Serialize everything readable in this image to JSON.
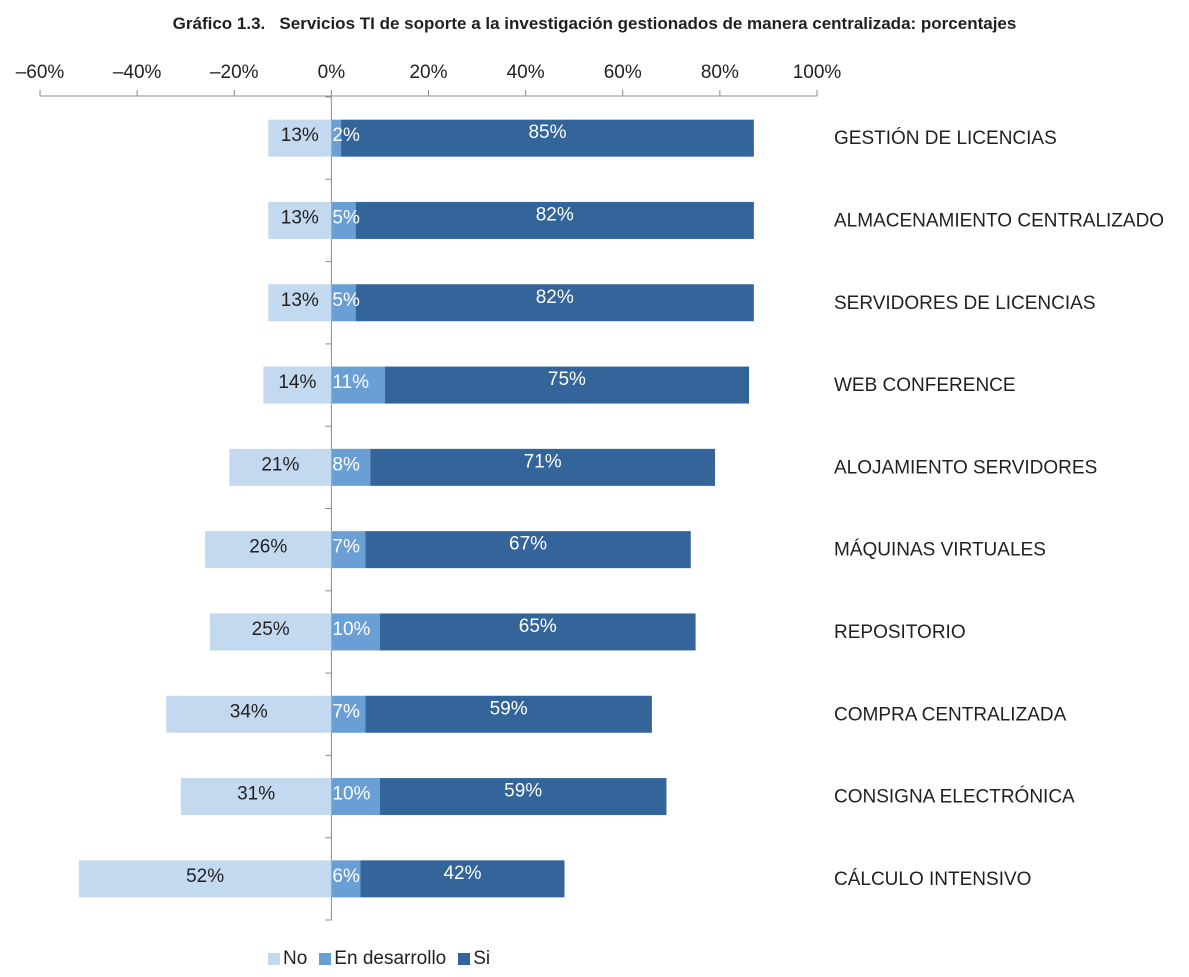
{
  "chart_data": {
    "type": "bar",
    "orientation": "horizontal",
    "stacked": true,
    "diverging": true,
    "title": "Gráfico 1.3.   Servicios TI de soporte a la investigación gestionados de manera centralizada: porcentajes",
    "xlim": [
      -60,
      100
    ],
    "x_ticks": [
      -60,
      -40,
      -20,
      0,
      20,
      40,
      60,
      80,
      100
    ],
    "x_tick_labels": [
      "–60%",
      "–40%",
      "–20%",
      "0%",
      "20%",
      "40%",
      "60%",
      "80%",
      "100%"
    ],
    "x_axis_position": "top",
    "category_label_position": "right",
    "grid": false,
    "categories": [
      "GESTIÓN DE LICENCIAS",
      "ALMACENAMIENTO CENTRALIZADO",
      "SERVIDORES DE LICENCIAS",
      "WEB CONFERENCE",
      "ALOJAMIENTO SERVIDORES",
      "MÁQUINAS VIRTUALES",
      "REPOSITORIO",
      "COMPRA CENTRALIZADA",
      "CONSIGNA ELECTRÓNICA",
      "CÁLCULO INTENSIVO"
    ],
    "series": [
      {
        "name": "No",
        "color": "#c3d9ef",
        "direction": "negative",
        "values": [
          13,
          13,
          13,
          14,
          21,
          26,
          25,
          34,
          31,
          52
        ],
        "labels": [
          "13%",
          "13%",
          "13%",
          "14%",
          "21%",
          "26%",
          "25%",
          "34%",
          "31%",
          "52%"
        ]
      },
      {
        "name": "En desarrollo",
        "color": "#6a9fd6",
        "direction": "positive",
        "values": [
          2,
          5,
          5,
          11,
          8,
          7,
          10,
          7,
          10,
          6
        ],
        "labels": [
          "2%",
          "5%",
          "5%",
          "11%",
          "8%",
          "7%",
          "10%",
          "7%",
          "10%",
          "6%"
        ]
      },
      {
        "name": "Si",
        "color": "#33649a",
        "direction": "positive",
        "values": [
          85,
          82,
          82,
          75,
          71,
          67,
          65,
          59,
          59,
          42
        ],
        "labels": [
          "85%",
          "82%",
          "82%",
          "75%",
          "71%",
          "67%",
          "65%",
          "59%",
          "59%",
          "42%"
        ]
      }
    ],
    "legend": {
      "placement": "bottom-left"
    }
  }
}
